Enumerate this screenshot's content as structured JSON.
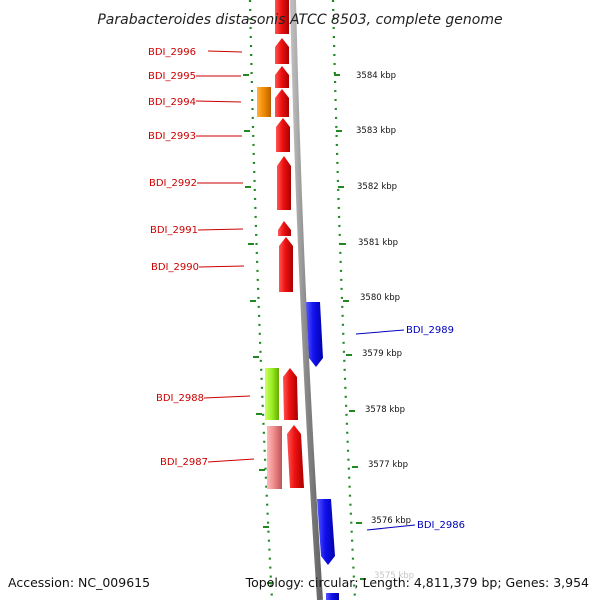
{
  "title": "Parabacteroides distasonis ATCC 8503, complete genome",
  "footer": {
    "accession": "Accession: NC_009615",
    "topology": "Topology: circular; Length: 4,811,379 bp; Genes: 3,954"
  },
  "colors": {
    "forward_gene": "#ee1111",
    "reverse_gene": "#1111ee",
    "orange_gene": "#f08a00",
    "green_gene": "#99ee22",
    "pink_gene": "#ee8888",
    "backbone": "#888888",
    "tick": "#228822",
    "left_label": "#cc0000",
    "right_label": "#0000bb"
  },
  "left_genes": [
    {
      "id": "g2996",
      "label": "BDI_2996"
    },
    {
      "id": "g2995",
      "label": "BDI_2995"
    },
    {
      "id": "g2994",
      "label": "BDI_2994"
    },
    {
      "id": "g2993",
      "label": "BDI_2993"
    },
    {
      "id": "g2992",
      "label": "BDI_2992"
    },
    {
      "id": "g2991",
      "label": "BDI_2991"
    },
    {
      "id": "g2990",
      "label": "BDI_2990"
    },
    {
      "id": "g2988",
      "label": "BDI_2988"
    },
    {
      "id": "g2987",
      "label": "BDI_2987"
    }
  ],
  "right_genes": [
    {
      "id": "g2989",
      "label": "BDI_2989"
    },
    {
      "id": "g2986",
      "label": "BDI_2986"
    }
  ],
  "scale_labels": [
    "3584 kbp",
    "3583 kbp",
    "3582 kbp",
    "3581 kbp",
    "3580 kbp",
    "3579 kbp",
    "3578 kbp",
    "3577 kbp",
    "3576 kbp",
    "3575 kbp"
  ]
}
